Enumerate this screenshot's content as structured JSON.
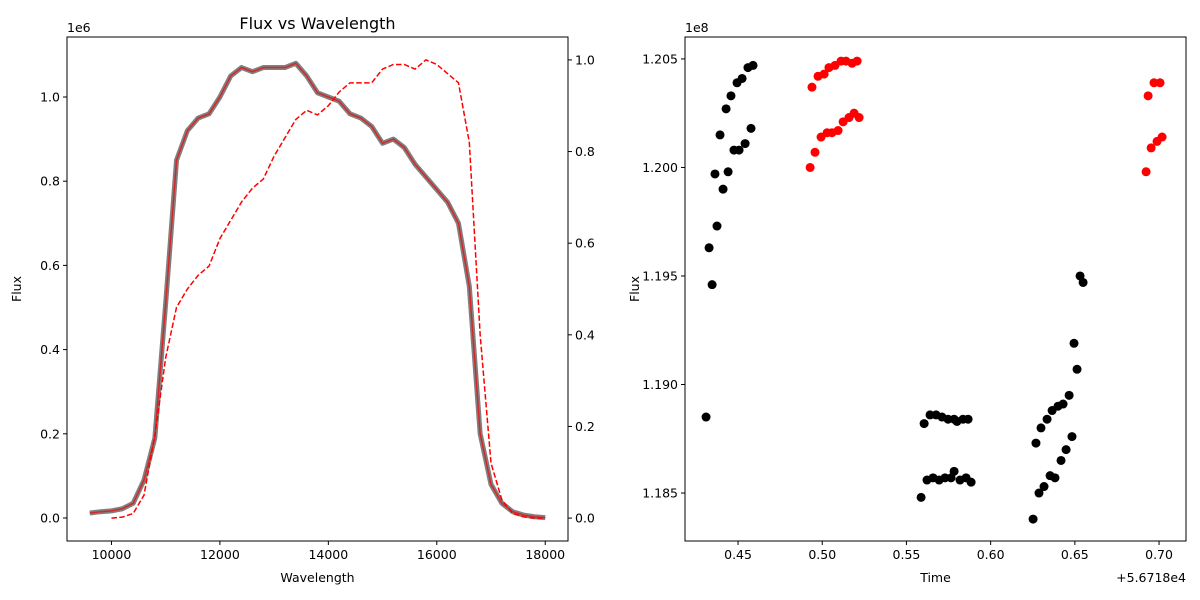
{
  "chart_data": [
    {
      "type": "line",
      "title": "Flux vs Wavelength",
      "xlabel": "Wavelength",
      "ylabel": "Flux",
      "y_offset_text": "1e6",
      "xlim": [
        9180,
        18420
      ],
      "ylim": [
        -0.0546,
        1.1425
      ],
      "y2lim": [
        -0.05,
        1.05
      ],
      "xticks": [
        10000,
        12000,
        14000,
        16000,
        18000
      ],
      "yticks": [
        {
          "value": 0,
          "label": "0.0"
        },
        0.2,
        0.4,
        0.6,
        0.8,
        {
          "value": 1,
          "label": "1.0"
        }
      ],
      "y2ticks": [
        {
          "value": 0,
          "label": "0.0"
        },
        0.2,
        0.4,
        0.6,
        0.8,
        {
          "value": 1,
          "label": "1.0"
        }
      ],
      "series": [
        {
          "color": "#d62728",
          "band_color": "#808080",
          "style": "solid",
          "x": [
            9600,
            9800,
            10000,
            10200,
            10400,
            10600,
            10800,
            11000,
            11200,
            11400,
            11600,
            11800,
            12000,
            12200,
            12400,
            12600,
            12800,
            13000,
            13200,
            13400,
            13600,
            13800,
            14000,
            14200,
            14400,
            14600,
            14800,
            15000,
            15200,
            15400,
            15600,
            15800,
            16000,
            16200,
            16400,
            16600,
            16800,
            17000,
            17200,
            17400,
            17600,
            17800,
            18000
          ],
          "values": [
            0.012,
            0.015,
            0.017,
            0.022,
            0.035,
            0.09,
            0.19,
            0.51,
            0.85,
            0.92,
            0.95,
            0.96,
            1.0,
            1.05,
            1.07,
            1.06,
            1.07,
            1.07,
            1.07,
            1.08,
            1.05,
            1.01,
            1.0,
            0.99,
            0.96,
            0.95,
            0.93,
            0.89,
            0.9,
            0.88,
            0.84,
            0.81,
            0.78,
            0.75,
            0.7,
            0.55,
            0.2,
            0.08,
            0.035,
            0.015,
            0.007,
            0.003,
            0.001
          ]
        },
        {
          "color": "#ff0000",
          "style": "dashed",
          "axis": "y2",
          "x": [
            10000,
            10200,
            10400,
            10600,
            10800,
            11000,
            11200,
            11400,
            11600,
            11800,
            12000,
            12200,
            12400,
            12600,
            12800,
            13000,
            13200,
            13400,
            13600,
            13800,
            14000,
            14200,
            14400,
            14600,
            14800,
            15000,
            15200,
            15400,
            15600,
            15800,
            16000,
            16200,
            16400,
            16600,
            16800,
            17000,
            17200,
            17400,
            17600,
            17800,
            18000
          ],
          "values": [
            0.0,
            0.002,
            0.01,
            0.05,
            0.18,
            0.35,
            0.46,
            0.5,
            0.53,
            0.55,
            0.61,
            0.65,
            0.69,
            0.72,
            0.74,
            0.79,
            0.83,
            0.87,
            0.89,
            0.88,
            0.9,
            0.93,
            0.95,
            0.95,
            0.95,
            0.98,
            0.99,
            0.99,
            0.98,
            1.0,
            0.99,
            0.97,
            0.95,
            0.82,
            0.4,
            0.12,
            0.04,
            0.01,
            0.003,
            0.0,
            0.0
          ]
        }
      ]
    },
    {
      "type": "scatter",
      "xlabel": "Time",
      "ylabel": "Flux",
      "y_offset_text": "1e8",
      "x_offset_text": "+5.6718e4",
      "xlim": [
        0.4185,
        0.716
      ],
      "ylim": [
        1.18279,
        1.20601
      ],
      "xticks": [
        0.45,
        {
          "value": 0.5,
          "label": "0.50"
        },
        0.55,
        {
          "value": 0.6,
          "label": "0.60"
        },
        0.65,
        {
          "value": 0.7,
          "label": "0.70"
        }
      ],
      "yticks": [
        1.185,
        {
          "value": 1.19,
          "label": "1.190"
        },
        1.195,
        {
          "value": 1.2,
          "label": "1.200"
        },
        1.205
      ],
      "series": [
        {
          "color": "#000000",
          "x": [
            0.431,
            0.4328,
            0.4346,
            0.4363,
            0.4375,
            0.4393,
            0.4411,
            0.4429,
            0.4441,
            0.4458,
            0.4476,
            0.4494,
            0.4506,
            0.4524,
            0.4542,
            0.4559,
            0.4577,
            0.4589,
            0.5587,
            0.5605,
            0.5622,
            0.564,
            0.5658,
            0.5676,
            0.5694,
            0.5711,
            0.5729,
            0.5747,
            0.5765,
            0.5783,
            0.5783,
            0.58,
            0.5818,
            0.5836,
            0.5854,
            0.5866,
            0.5884,
            0.6252,
            0.6269,
            0.6287,
            0.6299,
            0.6317,
            0.6335,
            0.6353,
            0.6365,
            0.6382,
            0.64,
            0.6418,
            0.643,
            0.6448,
            0.6466,
            0.6483,
            0.6495,
            0.6513,
            0.6531,
            0.6549
          ],
          "values": [
            1.1885,
            1.1963,
            1.1946,
            1.1997,
            1.1973,
            1.2015,
            1.199,
            1.2027,
            1.1998,
            1.2033,
            1.2008,
            1.2039,
            1.2008,
            1.2041,
            1.2011,
            1.2046,
            1.2018,
            1.2047,
            1.1848,
            1.1882,
            1.1856,
            1.1886,
            1.1857,
            1.1886,
            1.1856,
            1.1885,
            1.1857,
            1.1884,
            1.1857,
            1.1884,
            1.186,
            1.1883,
            1.1856,
            1.1884,
            1.1857,
            1.1884,
            1.1855,
            1.1838,
            1.1873,
            1.185,
            1.188,
            1.1853,
            1.1884,
            1.1858,
            1.1888,
            1.1857,
            1.189,
            1.1865,
            1.1891,
            1.187,
            1.1895,
            1.1876,
            1.1919,
            1.1907,
            1.195,
            1.1947
          ]
        },
        {
          "color": "#ff0000",
          "x": [
            0.4928,
            0.4939,
            0.4957,
            0.4975,
            0.4993,
            0.5011,
            0.5029,
            0.504,
            0.5058,
            0.5076,
            0.5094,
            0.5112,
            0.5124,
            0.5141,
            0.5159,
            0.5177,
            0.5189,
            0.5207,
            0.5219,
            0.6923,
            0.6935,
            0.6953,
            0.697,
            0.6988,
            0.7006,
            0.7018
          ],
          "values": [
            1.2,
            1.2037,
            1.2007,
            1.2042,
            1.2014,
            1.2043,
            1.2016,
            1.2046,
            1.2016,
            1.2047,
            1.2017,
            1.2049,
            1.2021,
            1.2049,
            1.2023,
            1.2048,
            1.2025,
            1.2049,
            1.2023,
            1.1998,
            1.2033,
            1.2009,
            1.2039,
            1.2012,
            1.2039,
            1.2014
          ]
        }
      ]
    }
  ]
}
